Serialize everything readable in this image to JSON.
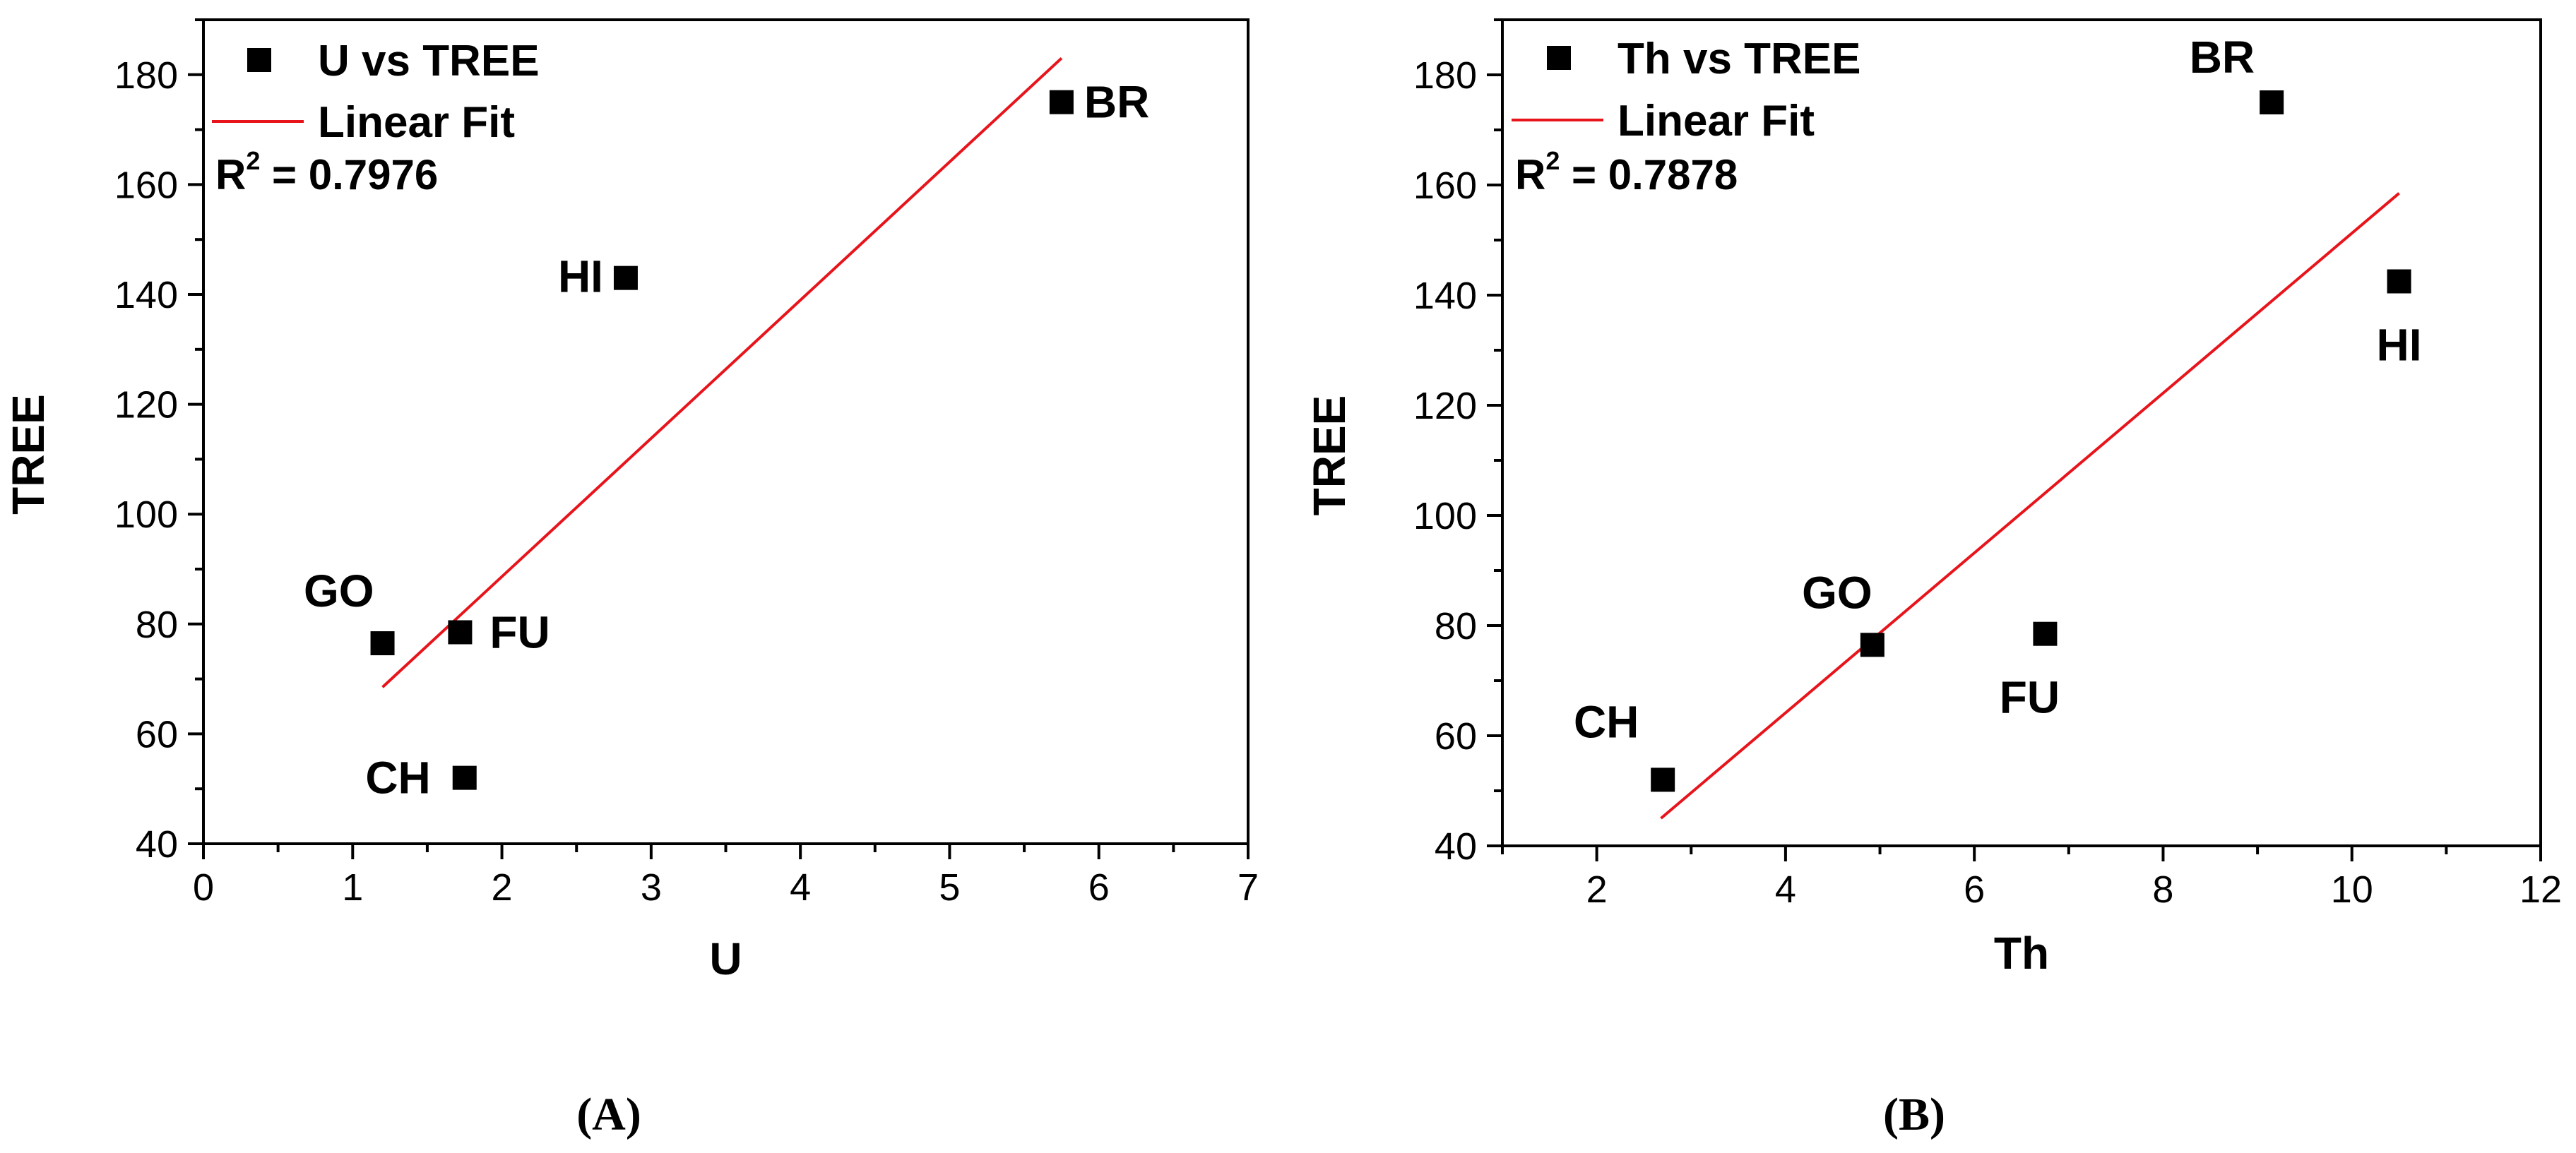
{
  "chart_data": [
    {
      "type": "scatter",
      "panel_label": "(A)",
      "xlabel": "U",
      "ylabel": "TREE",
      "xlim": [
        0,
        7
      ],
      "ylim": [
        40,
        190
      ],
      "xticks": [
        0,
        1,
        2,
        3,
        4,
        5,
        6,
        7
      ],
      "yticks": [
        40,
        60,
        80,
        100,
        120,
        140,
        160,
        180
      ],
      "series": [
        {
          "name": "U vs TREE",
          "points": [
            {
              "label": "BR",
              "x": 5.75,
              "y": 175
            },
            {
              "label": "HI",
              "x": 2.83,
              "y": 143
            },
            {
              "label": "GO",
              "x": 1.2,
              "y": 76.5
            },
            {
              "label": "FU",
              "x": 1.72,
              "y": 78.5
            },
            {
              "label": "CH",
              "x": 1.75,
              "y": 52
            }
          ],
          "color": "#000000"
        },
        {
          "name": "Linear Fit",
          "line": [
            {
              "x": 1.2,
              "y": 68.5
            },
            {
              "x": 5.75,
              "y": 183
            }
          ],
          "color": "#e8141b"
        }
      ],
      "r2": {
        "prefix": "R",
        "sup": "2",
        "text": " = 0.7976"
      }
    },
    {
      "type": "scatter",
      "panel_label": "(B)",
      "xlabel": "Th",
      "ylabel": "TREE",
      "xlim": [
        1,
        12
      ],
      "ylim": [
        40,
        190
      ],
      "xticks": [
        2,
        4,
        6,
        8,
        10,
        12
      ],
      "yticks": [
        40,
        60,
        80,
        100,
        120,
        140,
        160,
        180
      ],
      "series": [
        {
          "name": "Th vs TREE",
          "points": [
            {
              "label": "BR",
              "x": 9.15,
              "y": 175
            },
            {
              "label": "HI",
              "x": 10.5,
              "y": 142.5
            },
            {
              "label": "GO",
              "x": 4.92,
              "y": 76.5
            },
            {
              "label": "FU",
              "x": 6.75,
              "y": 78.5
            },
            {
              "label": "CH",
              "x": 2.7,
              "y": 52
            }
          ],
          "color": "#000000"
        },
        {
          "name": "Linear Fit",
          "line": [
            {
              "x": 2.68,
              "y": 45
            },
            {
              "x": 10.5,
              "y": 158.5
            }
          ],
          "color": "#e8141b"
        }
      ],
      "r2": {
        "prefix": "R",
        "sup": "2",
        "text": " = 0.7878"
      }
    }
  ]
}
